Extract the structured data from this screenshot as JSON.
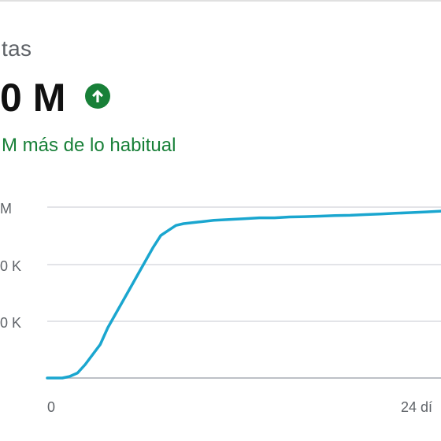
{
  "card": {
    "metric_label": "tas",
    "metric_value": "0 M",
    "trend_icon": "arrow-up-circle-icon",
    "comparison_text": "M más de lo habitual",
    "colors": {
      "positive": "#188038",
      "line": "#1aa6cf",
      "grid": "#dadce0",
      "axis": "#bdc1c6"
    }
  },
  "chart_data": {
    "type": "line",
    "title": "",
    "xlabel": "",
    "ylabel": "",
    "x_ticks": [
      "0",
      "24 dí"
    ],
    "y_ticks": [
      "M",
      "0 K",
      "0 K"
    ],
    "grid": true,
    "legend": "none",
    "x": [
      0,
      0.5,
      1,
      1.5,
      2,
      2.5,
      3,
      3.5,
      4,
      4.5,
      5,
      5.5,
      6,
      6.5,
      7,
      7.5,
      8,
      8.5,
      9,
      10,
      11,
      12,
      13,
      14,
      15,
      16,
      17,
      18,
      19,
      20,
      21,
      22,
      23,
      24,
      25,
      26
    ],
    "y_relative_max": [
      0,
      0,
      0,
      0.01,
      0.03,
      0.08,
      0.14,
      0.2,
      0.3,
      0.38,
      0.46,
      0.54,
      0.62,
      0.7,
      0.78,
      0.85,
      0.88,
      0.91,
      0.92,
      0.93,
      0.94,
      0.945,
      0.95,
      0.955,
      0.955,
      0.96,
      0.962,
      0.965,
      0.968,
      0.97,
      0.974,
      0.978,
      0.982,
      0.986,
      0.99,
      0.995
    ]
  }
}
